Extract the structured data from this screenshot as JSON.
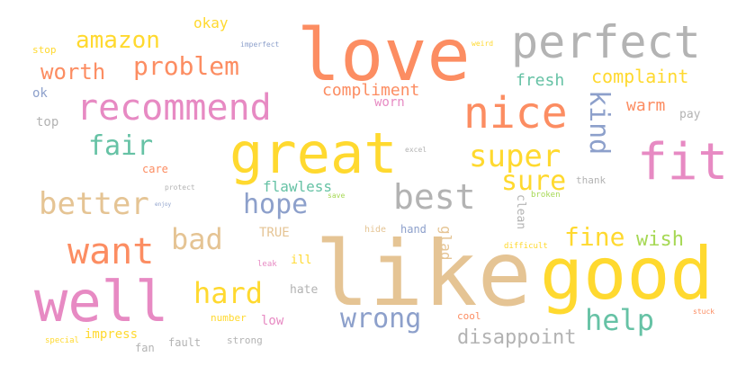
{
  "cloud": {
    "palette": {
      "coral": "#fc8d62",
      "gold": "#ffd92f",
      "tan": "#e5c494",
      "gray": "#b3b3b3",
      "pink": "#e78ac3",
      "teal": "#66c2a5",
      "blue": "#8da0cb",
      "green": "#a6d854"
    },
    "words": [
      "love",
      "like",
      "good",
      "great",
      "perfect",
      "nice",
      "well",
      "fit",
      "recommend",
      "want",
      "best",
      "better",
      "super",
      "sure",
      "kind",
      "help",
      "hope",
      "problem",
      "fair",
      "worth",
      "amazon",
      "bad",
      "hard",
      "wrong",
      "fine",
      "disappoint",
      "wish",
      "complaint",
      "compliment",
      "fresh",
      "okay",
      "warm",
      "flawless",
      "top",
      "ok",
      "stop",
      "care",
      "pay",
      "thank",
      "hand",
      "hide",
      "glad",
      "clean",
      "TRUE",
      "ill",
      "hate",
      "number",
      "low",
      "cool",
      "impress",
      "fault",
      "strong",
      "fan",
      "special",
      "difficult",
      "worn",
      "broken",
      "leak",
      "excel",
      "imperfect",
      "weird",
      "protect",
      "enjoy",
      "stuck",
      "save"
    ]
  }
}
